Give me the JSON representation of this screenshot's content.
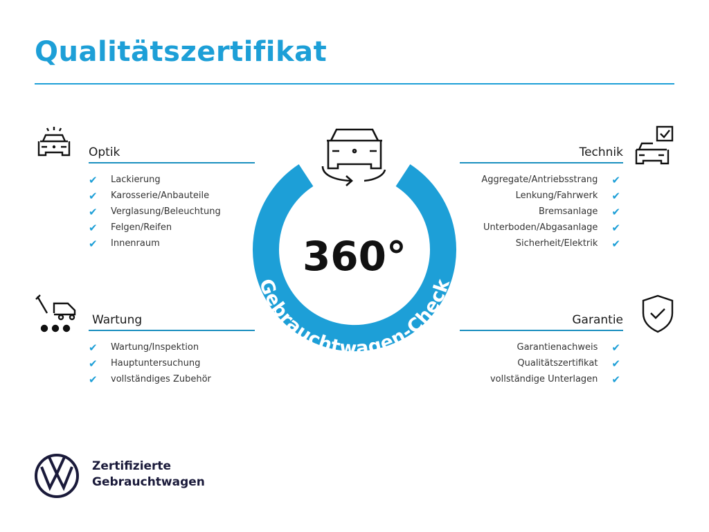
{
  "title": "Qualitätszertifikat",
  "center": {
    "degrees": "360°",
    "ring_text": "Gebrauchtwagen-Check",
    "ring_color": "#1d9fd7"
  },
  "sections": {
    "optik": {
      "heading": "Optik",
      "items": [
        "Lackierung",
        "Karosserie/Anbauteile",
        "Verglasung/Beleuchtung",
        "Felgen/Reifen",
        "Innenraum"
      ]
    },
    "technik": {
      "heading": "Technik",
      "items": [
        "Aggregate/Antriebsstrang",
        "Lenkung/Fahrwerk",
        "Bremsanlage",
        "Unterboden/Abgasanlage",
        "Sicherheit/Elektrik"
      ]
    },
    "wartung": {
      "heading": "Wartung",
      "items": [
        "Wartung/Inspektion",
        "Hauptuntersuchung",
        "vollständiges Zubehör"
      ]
    },
    "garantie": {
      "heading": "Garantie",
      "items": [
        "Garantienachweis",
        "Qualitätszertifikat",
        "vollständige Unterlagen"
      ]
    }
  },
  "check": "✔",
  "brand": {
    "line1": "Zertifizierte",
    "line2": "Gebrauchtwagen"
  }
}
